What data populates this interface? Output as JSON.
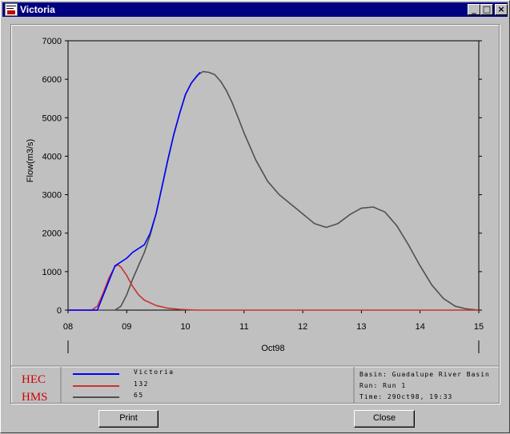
{
  "window": {
    "title": "Victoria",
    "minimize_glyph": "_",
    "maximize_glyph": "□",
    "close_glyph": "×"
  },
  "chart_data": {
    "type": "line",
    "ylabel": "Flow(m3/s)",
    "xlabel": "Oct98",
    "ylim": [
      0,
      7000
    ],
    "xlim": [
      8,
      15
    ],
    "yticks": [
      0,
      1000,
      2000,
      3000,
      4000,
      5000,
      6000,
      7000
    ],
    "xticks": [
      "08",
      "09",
      "10",
      "11",
      "12",
      "13",
      "14",
      "15"
    ],
    "grid": false,
    "legend_position": "bottom",
    "series": [
      {
        "name": "Victoria",
        "color": "#0000ff",
        "x": [
          8.0,
          8.5,
          8.8,
          8.9,
          9.0,
          9.1,
          9.3,
          9.4,
          9.5,
          9.6,
          9.7,
          9.8,
          9.9,
          10.0,
          10.1,
          10.25
        ],
        "y": [
          0,
          0,
          1150,
          1250,
          1350,
          1500,
          1700,
          2000,
          2500,
          3200,
          3900,
          4550,
          5100,
          5600,
          5900,
          6180
        ]
      },
      {
        "name": "132",
        "color": "#c83232",
        "x": [
          8.0,
          8.4,
          8.5,
          8.6,
          8.7,
          8.8,
          8.85,
          8.9,
          9.0,
          9.1,
          9.2,
          9.3,
          9.5,
          9.7,
          9.9,
          10.2,
          15.0
        ],
        "y": [
          0,
          0,
          100,
          450,
          850,
          1130,
          1180,
          1120,
          900,
          620,
          400,
          260,
          120,
          50,
          20,
          0,
          0
        ]
      },
      {
        "name": "65",
        "color": "#505050",
        "x": [
          8.0,
          8.8,
          8.9,
          9.0,
          9.1,
          9.2,
          9.3,
          9.4,
          9.5,
          9.6,
          9.7,
          9.8,
          9.9,
          10.0,
          10.1,
          10.2,
          10.3,
          10.4,
          10.5,
          10.6,
          10.7,
          10.8,
          10.9,
          11.0,
          11.2,
          11.4,
          11.6,
          11.8,
          12.0,
          12.2,
          12.4,
          12.6,
          12.8,
          13.0,
          13.2,
          13.4,
          13.6,
          13.8,
          14.0,
          14.2,
          14.4,
          14.6,
          14.8,
          15.0
        ],
        "y": [
          0,
          0,
          100,
          400,
          800,
          1150,
          1500,
          1950,
          2500,
          3200,
          3900,
          4550,
          5100,
          5600,
          5900,
          6100,
          6200,
          6180,
          6120,
          5950,
          5700,
          5380,
          5000,
          4600,
          3900,
          3350,
          3000,
          2750,
          2500,
          2250,
          2150,
          2250,
          2480,
          2650,
          2680,
          2550,
          2200,
          1700,
          1150,
          650,
          300,
          100,
          30,
          0
        ]
      }
    ]
  },
  "legend": [
    {
      "label": "Victoria",
      "color": "#0000ff"
    },
    {
      "label": "132",
      "color": "#c83232"
    },
    {
      "label": "65",
      "color": "#505050"
    }
  ],
  "logo": {
    "line1": "HEC",
    "line2": "HMS"
  },
  "info": {
    "basin": "Basin: Guadalupe River Basin",
    "run": "Run:   Run 1",
    "time": "Time:   29Oct98, 19:33"
  },
  "buttons": {
    "print": "Print",
    "close": "Close"
  }
}
